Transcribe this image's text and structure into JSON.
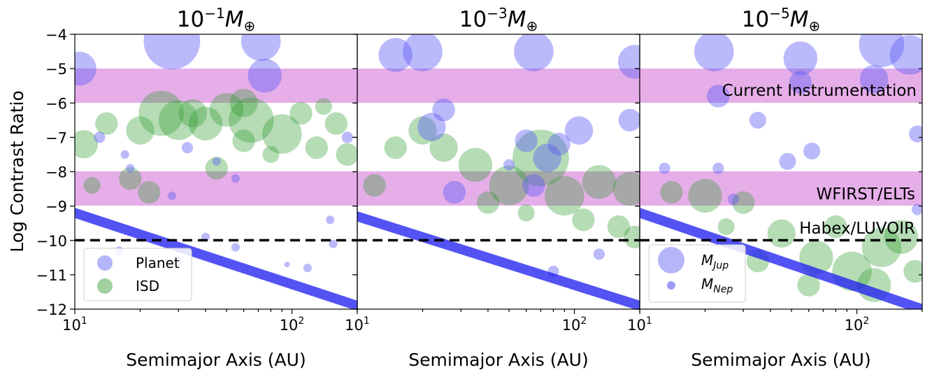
{
  "figure": {
    "ylabel": "Log Contrast Ratio",
    "reference_lines": [
      {
        "y": -10,
        "style": "dashed"
      }
    ],
    "bands": [
      {
        "label": "Current Instrumentation",
        "ymin": -6,
        "ymax": -5,
        "color": "#e6aee9"
      },
      {
        "label": "WFIRST/ELTs",
        "ymin": -9,
        "ymax": -8,
        "color": "#e6aee9"
      },
      {
        "label": "Habex/LUVOIR",
        "ymin": -10,
        "ymax": -10
      }
    ],
    "colors": {
      "planet": "#5a5af5",
      "isd": "#2e9a2e",
      "planet_line": "#1a1af0"
    }
  },
  "chart_data": [
    {
      "type": "scatter",
      "title_base": "10",
      "title_exp": "−1",
      "title_sym": "M",
      "title_sub": "⊕",
      "xlabel": "Semimajor Axis (AU)",
      "xscale": "log",
      "xlim": [
        10,
        200
      ],
      "ylim": [
        -12,
        -4
      ],
      "xticks": [
        {
          "value": 10,
          "base": "10",
          "exp": "1"
        },
        {
          "value": 100,
          "base": "10",
          "exp": "2"
        }
      ],
      "yticks": [
        "−4",
        "−5",
        "−6",
        "−7",
        "−8",
        "−9",
        "−10",
        "−11",
        "−12"
      ],
      "legend": {
        "placement": "lower-left",
        "items": [
          {
            "marker": "planet",
            "label": "Planet"
          },
          {
            "marker": "isd",
            "label": "ISD"
          }
        ]
      },
      "series": [
        {
          "name": "Planet",
          "points": [
            [
              10.5,
              -5.0,
              0.06
            ],
            [
              28,
              -4.2,
              0.1
            ],
            [
              72,
              -4.2,
              0.07
            ],
            [
              75,
              -5.2,
              0.06
            ],
            [
              13,
              -7.0,
              0.02
            ],
            [
              17,
              -7.5,
              0.015
            ],
            [
              18,
              -7.9,
              0.015
            ],
            [
              28,
              -8.7,
              0.015
            ],
            [
              33,
              -7.3,
              0.02
            ],
            [
              45,
              -7.7,
              0.015
            ],
            [
              55,
              -8.2,
              0.015
            ],
            [
              118,
              -10.8,
              0.015
            ],
            [
              150,
              -9.4,
              0.015
            ],
            [
              155,
              -10.1,
              0.015
            ],
            [
              180,
              -7.0,
              0.02
            ],
            [
              40,
              -9.9,
              0.015
            ],
            [
              55,
              -10.2,
              0.015
            ],
            [
              16,
              -10.3,
              0.015
            ],
            [
              30,
              -10.6,
              0.015
            ],
            [
              95,
              -10.7,
              0.01
            ]
          ]
        },
        {
          "name": "ISD",
          "points": [
            [
              25,
              -6.3,
              0.08
            ],
            [
              30,
              -6.5,
              0.07
            ],
            [
              35,
              -6.3,
              0.05
            ],
            [
              40,
              -6.6,
              0.06
            ],
            [
              50,
              -6.2,
              0.06
            ],
            [
              65,
              -6.5,
              0.08
            ],
            [
              90,
              -6.9,
              0.07
            ],
            [
              11,
              -7.2,
              0.05
            ],
            [
              14,
              -6.6,
              0.04
            ],
            [
              20,
              -6.8,
              0.05
            ],
            [
              60,
              -6.0,
              0.05
            ],
            [
              110,
              -6.3,
              0.04
            ],
            [
              130,
              -7.3,
              0.04
            ],
            [
              160,
              -6.6,
              0.04
            ],
            [
              180,
              -7.5,
              0.04
            ],
            [
              18,
              -8.2,
              0.04
            ],
            [
              22,
              -8.6,
              0.04
            ],
            [
              12,
              -8.4,
              0.03
            ],
            [
              45,
              -7.9,
              0.04
            ],
            [
              80,
              -7.5,
              0.03
            ],
            [
              140,
              -6.1,
              0.03
            ],
            [
              60,
              -7.1,
              0.04
            ]
          ]
        },
        {
          "name": "Planet (MNep)",
          "line": [
            [
              10,
              -9.2
            ],
            [
              200,
              -11.9
            ]
          ]
        }
      ]
    },
    {
      "type": "scatter",
      "title_base": "10",
      "title_exp": "−3",
      "title_sym": "M",
      "title_sub": "⊕",
      "xlabel": "Semimajor Axis (AU)",
      "xscale": "log",
      "xlim": [
        10,
        200
      ],
      "ylim": [
        -12,
        -4
      ],
      "xticks": [
        {
          "value": 10,
          "base": "10",
          "exp": "1"
        },
        {
          "value": 100,
          "base": "10",
          "exp": "2"
        }
      ],
      "yticks": [],
      "series": [
        {
          "name": "Planet",
          "points": [
            [
              15,
              -4.6,
              0.06
            ],
            [
              20,
              -4.5,
              0.07
            ],
            [
              65,
              -4.5,
              0.07
            ],
            [
              190,
              -4.8,
              0.06
            ],
            [
              25,
              -6.2,
              0.04
            ],
            [
              22,
              -6.7,
              0.05
            ],
            [
              60,
              -7.1,
              0.04
            ],
            [
              75,
              -7.6,
              0.05
            ],
            [
              85,
              -7.2,
              0.04
            ],
            [
              105,
              -6.8,
              0.05
            ],
            [
              180,
              -6.5,
              0.04
            ],
            [
              28,
              -8.6,
              0.04
            ],
            [
              65,
              -8.4,
              0.04
            ],
            [
              50,
              -7.8,
              0.02
            ],
            [
              130,
              -10.4,
              0.02
            ],
            [
              80,
              -10.9,
              0.02
            ]
          ]
        },
        {
          "name": "ISD",
          "points": [
            [
              70,
              -7.6,
              0.1
            ],
            [
              25,
              -7.3,
              0.05
            ],
            [
              35,
              -7.8,
              0.06
            ],
            [
              50,
              -8.4,
              0.07
            ],
            [
              90,
              -8.7,
              0.07
            ],
            [
              130,
              -8.3,
              0.06
            ],
            [
              180,
              -8.5,
              0.06
            ],
            [
              20,
              -6.8,
              0.05
            ],
            [
              15,
              -7.3,
              0.04
            ],
            [
              12,
              -8.4,
              0.04
            ],
            [
              110,
              -9.4,
              0.04
            ],
            [
              40,
              -8.9,
              0.04
            ],
            [
              60,
              -9.2,
              0.03
            ],
            [
              160,
              -9.6,
              0.04
            ],
            [
              190,
              -9.9,
              0.04
            ]
          ]
        },
        {
          "name": "Planet (MNep)",
          "line": [
            [
              10,
              -9.3
            ],
            [
              200,
              -11.9
            ]
          ]
        }
      ]
    },
    {
      "type": "scatter",
      "title_base": "10",
      "title_exp": "−5",
      "title_sym": "M",
      "title_sub": "⊕",
      "xlabel": "Semimajor Axis (AU)",
      "xscale": "log",
      "xlim": [
        10,
        200
      ],
      "ylim": [
        -12,
        -4
      ],
      "xticks": [
        {
          "value": 10,
          "base": "10",
          "exp": "1"
        },
        {
          "value": 100,
          "base": "10",
          "exp": "2"
        }
      ],
      "yticks": [],
      "legend": {
        "placement": "lower-left",
        "items": [
          {
            "marker": "jup",
            "label_sym": "M",
            "label_sub": "Jup"
          },
          {
            "marker": "nep",
            "label_sym": "M",
            "label_sub": "Nep"
          }
        ]
      },
      "series": [
        {
          "name": "Planet",
          "points": [
            [
              22,
              -4.5,
              0.07
            ],
            [
              55,
              -4.7,
              0.06
            ],
            [
              130,
              -4.3,
              0.08
            ],
            [
              175,
              -4.6,
              0.07
            ],
            [
              23,
              -5.8,
              0.04
            ],
            [
              35,
              -6.5,
              0.03
            ],
            [
              55,
              -5.4,
              0.04
            ],
            [
              120,
              -5.3,
              0.05
            ],
            [
              190,
              -6.9,
              0.03
            ],
            [
              48,
              -7.7,
              0.03
            ],
            [
              62,
              -7.4,
              0.03
            ],
            [
              13,
              -7.9,
              0.02
            ],
            [
              23,
              -7.9,
              0.02
            ],
            [
              27,
              -8.8,
              0.02
            ],
            [
              190,
              -9.1,
              0.02
            ]
          ]
        },
        {
          "name": "ISD",
          "points": [
            [
              20,
              -8.7,
              0.06
            ],
            [
              14,
              -8.6,
              0.04
            ],
            [
              30,
              -8.9,
              0.04
            ],
            [
              45,
              -9.8,
              0.05
            ],
            [
              65,
              -10.5,
              0.06
            ],
            [
              95,
              -10.9,
              0.07
            ],
            [
              130,
              -10.2,
              0.07
            ],
            [
              160,
              -9.9,
              0.06
            ],
            [
              120,
              -11.3,
              0.06
            ],
            [
              60,
              -11.3,
              0.04
            ],
            [
              185,
              -10.9,
              0.04
            ],
            [
              35,
              -10.6,
              0.04
            ],
            [
              80,
              -9.6,
              0.04
            ],
            [
              25,
              -9.6,
              0.03
            ]
          ]
        },
        {
          "name": "Planet (MNep)",
          "line": [
            [
              10,
              -9.2
            ],
            [
              200,
              -12.0
            ]
          ]
        }
      ]
    }
  ]
}
